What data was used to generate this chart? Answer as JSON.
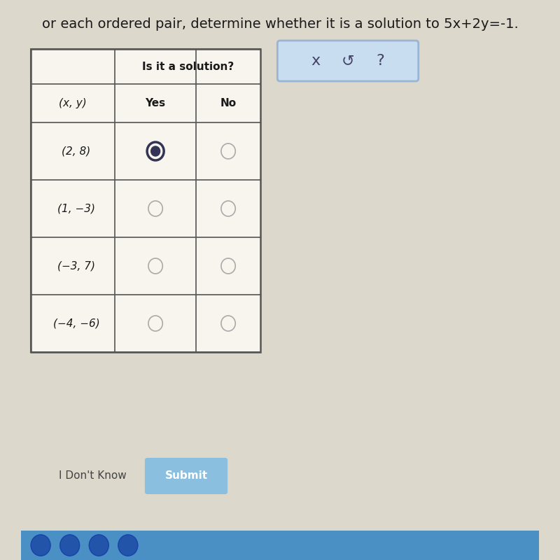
{
  "title": "or each ordered pair, determine whether it is a solution to 5x+2y=-1.",
  "title_fontsize": 14,
  "bg_color": "#ddd8cc",
  "table_bg": "#f0ece2",
  "header1": "Is it a solution?",
  "header2_col1": "(x, y)",
  "header2_col2": "Yes",
  "header2_col3": "No",
  "rows": [
    "(2, 8)",
    "(1, −3)",
    "(−3, 7)",
    "(−4, −6)"
  ],
  "selected_yes": [
    true,
    false,
    false,
    false
  ],
  "toolbar_symbols": [
    "x",
    "↺",
    "?"
  ],
  "submit_text": "Submit",
  "idk_text": "I Don't Know",
  "submit_color": "#8bbfdf",
  "toolbar_border_color": "#9ab4d4",
  "toolbar_bg": "#c8ddf0",
  "taskbar_color": "#4a90c4",
  "taskbar_icons_color": "#2255aa",
  "white_cell_bg": "#f8f5ee",
  "circle_color_normal": "#aaaaaa",
  "circle_color_selected": "#444466",
  "title_color": "#1a1a1a",
  "cell_label_color": "#1a1a1a",
  "header_color": "#1a1a1a"
}
